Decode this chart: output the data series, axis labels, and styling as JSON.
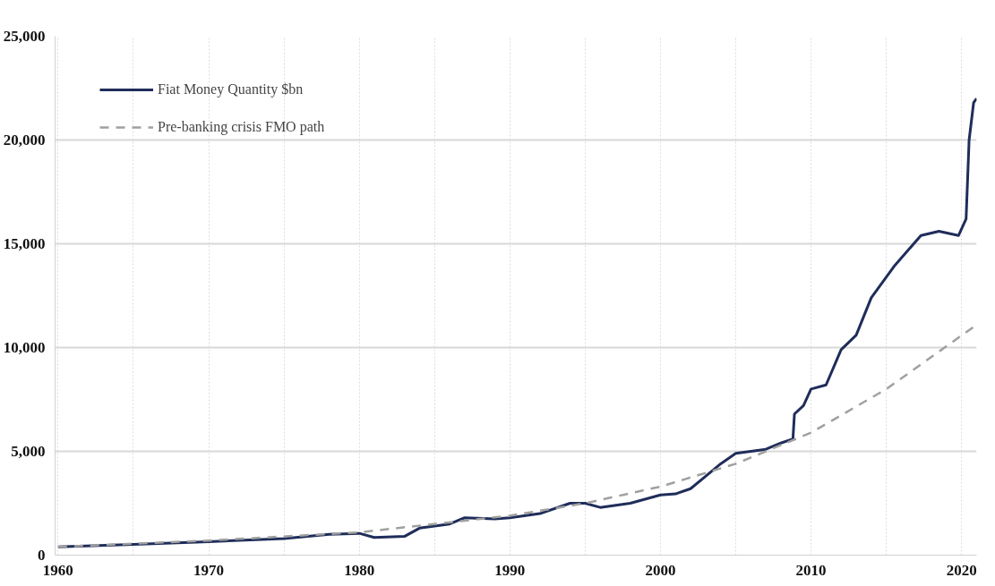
{
  "chart_data": {
    "type": "line",
    "xlim": [
      1959.8,
      2021
    ],
    "ylim": [
      0,
      25000
    ],
    "xticks": [
      1960,
      {
        "value": 1965,
        "label": null
      },
      1970,
      {
        "value": 1975,
        "label": null
      },
      1980,
      {
        "value": 1985,
        "label": null
      },
      1990,
      {
        "value": 1995,
        "label": null
      },
      2000,
      {
        "value": 2005,
        "label": null
      },
      2010,
      {
        "value": 2015,
        "label": null
      },
      2020
    ],
    "yticks": [
      {
        "value": 0,
        "label": "0"
      },
      {
        "value": 5000,
        "label": "5,000"
      },
      {
        "value": 10000,
        "label": "10,000"
      },
      {
        "value": 15000,
        "label": "15,000"
      },
      {
        "value": 20000,
        "label": "20,000"
      },
      {
        "value": 25000,
        "label": "25,000"
      }
    ],
    "grid": true,
    "legend": "top left",
    "series": [
      {
        "name": "Fiat Money Quantity $bn",
        "color": "#1f2d5a",
        "line_style": "solid",
        "x": [
          1960,
          1965,
          1970,
          1975,
          1978,
          1980,
          1981,
          1983,
          1984,
          1986,
          1987,
          1989,
          1990,
          1992,
          1994,
          1995,
          1996,
          1998,
          2000,
          2001,
          2002,
          2003,
          2004,
          2005,
          2006,
          2007,
          2008,
          2008.8,
          2008.9,
          2009.5,
          2010,
          2011,
          2012,
          2013,
          2014,
          2015.5,
          2017.3,
          2018.5,
          2019.8,
          2020.3,
          2020.5,
          2020.8,
          2021
        ],
        "values": [
          400,
          520,
          650,
          800,
          1000,
          1050,
          850,
          900,
          1300,
          1500,
          1800,
          1750,
          1800,
          2000,
          2500,
          2500,
          2300,
          2500,
          2900,
          2950,
          3200,
          3800,
          4400,
          4900,
          5000,
          5100,
          5400,
          5600,
          6800,
          7200,
          8000,
          8200,
          9900,
          10600,
          12400,
          13900,
          15400,
          15600,
          15400,
          16200,
          20000,
          21800,
          22000
        ]
      },
      {
        "name": "Pre-banking crisis FMO path",
        "color": "#a0a0a0",
        "line_style": "dashed",
        "x": [
          1960,
          1970,
          1980,
          1985,
          1990,
          1995,
          2000,
          2005,
          2010,
          2015,
          2021
        ],
        "values": [
          400,
          700,
          1100,
          1500,
          1900,
          2500,
          3300,
          4400,
          5900,
          8000,
          11100
        ]
      }
    ]
  }
}
